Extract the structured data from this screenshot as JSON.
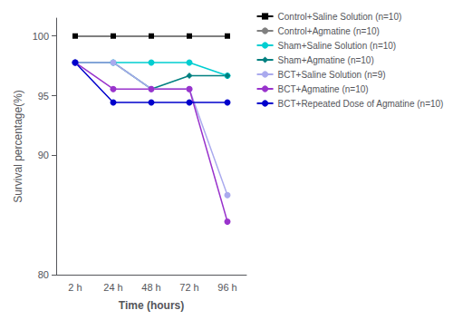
{
  "chart_data": {
    "type": "line",
    "xlabel": "Time (hours)",
    "ylabel": "Survival percentage(%)",
    "categories": [
      "2 h",
      "24 h",
      "48 h",
      "72 h",
      "96 h"
    ],
    "series": [
      {
        "name": "Control+Saline Solution (n=10)",
        "color": "#000000",
        "marker": "square",
        "line_style": "solid",
        "values": [
          100,
          100,
          100,
          100,
          100
        ]
      },
      {
        "name": "Control+Agmatine (n=10)",
        "color": "#808080",
        "marker": "none",
        "line_style": "solid",
        "values": [
          100,
          100,
          100,
          100,
          100
        ]
      },
      {
        "name": "Sham+Saline Solution (n=10)",
        "color": "#00CED1",
        "marker": "circle",
        "line_style": "solid",
        "values": [
          97.78,
          97.78,
          97.78,
          97.78,
          96.67
        ]
      },
      {
        "name": "Sham+Agmatine (n=10)",
        "color": "#008080",
        "marker": "diamond",
        "line_style": "solid",
        "values": [
          97.78,
          97.78,
          95.56,
          96.67,
          96.67
        ]
      },
      {
        "name": "BCT+Saline Solution (n=9)",
        "color": "#AAAAEE",
        "marker": "circle",
        "line_style": "solid",
        "values": [
          97.78,
          97.78,
          95.56,
          95.56,
          86.67
        ]
      },
      {
        "name": "BCT+Agmatine (n=10)",
        "color": "#9933CC",
        "marker": "circle",
        "line_style": "solid",
        "values": [
          97.78,
          95.56,
          95.56,
          95.56,
          84.44
        ]
      },
      {
        "name": "BCT+Repeated Dose of Agmatine (n=10)",
        "color": "#0000CC",
        "marker": "circle",
        "line_style": "solid",
        "values": [
          97.78,
          94.44,
          94.44,
          94.44,
          94.44
        ]
      }
    ],
    "ylim": [
      80,
      101.5
    ],
    "yticks": [
      80,
      90,
      95,
      100
    ],
    "grid": false,
    "legend": "right"
  }
}
